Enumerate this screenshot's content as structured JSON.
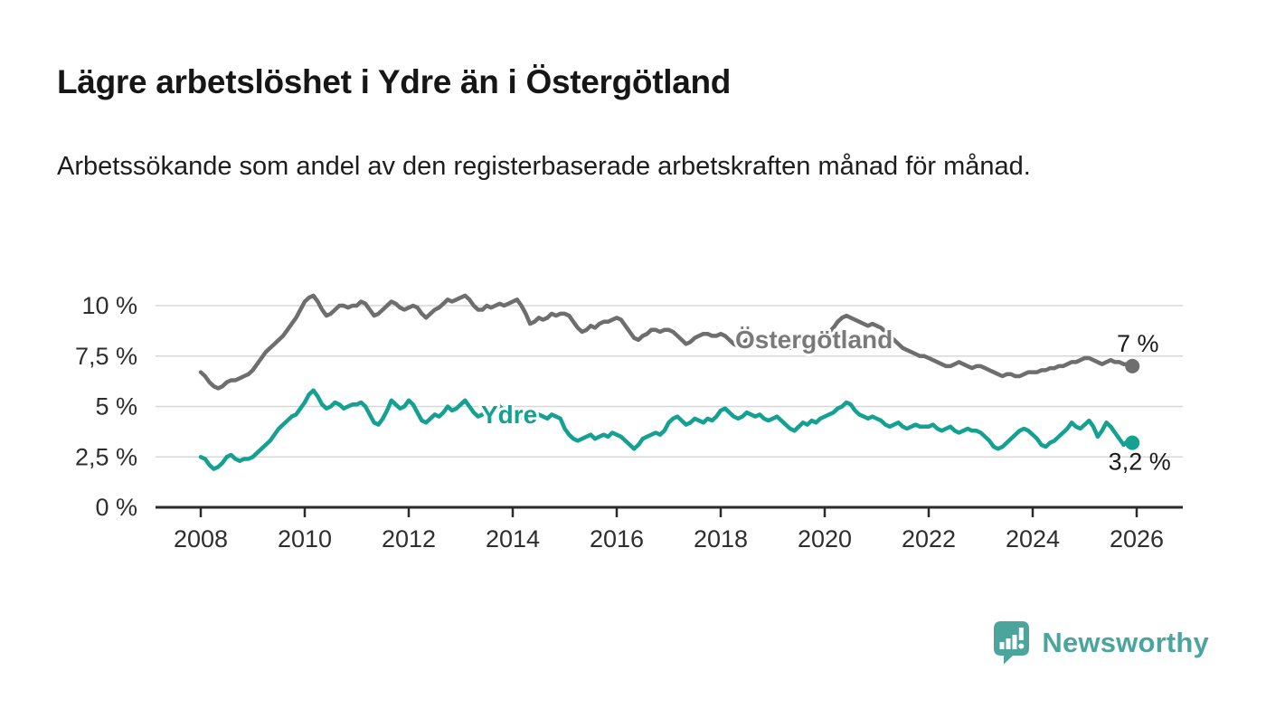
{
  "header": {
    "title": "Lägre arbetslöshet i Ydre än i Östergötland",
    "subtitle": "Arbetssökande som andel av den registerbaserade arbetskraften månad för månad."
  },
  "footer": {
    "brand": "Newsworthy"
  },
  "colors": {
    "accent_teal": "#14a191",
    "series_gray": "#6e6e6e",
    "label_gray": "#7a7a7a",
    "logo_teal": "#4ba59d",
    "grid": "#d8d8d8",
    "axis": "#2b2b2b",
    "text": "#2e2e2e"
  },
  "chart_data": {
    "type": "line",
    "title": "Lägre arbetslöshet i Ydre än i Östergötland",
    "subtitle": "Arbetssökande som andel av den registerbaserade arbetskraften månad för månad.",
    "frequency": "monthly",
    "x_start": "2008-01",
    "x_end": "2025-12",
    "xlim": [
      2007.1,
      2026.9
    ],
    "ylim": [
      0,
      11
    ],
    "grid": true,
    "legend": "inline-labels",
    "x_ticks": [
      {
        "year": 2008,
        "label": "2008"
      },
      {
        "year": 2010,
        "label": "2010"
      },
      {
        "year": 2012,
        "label": "2012"
      },
      {
        "year": 2014,
        "label": "2014"
      },
      {
        "year": 2016,
        "label": "2016"
      },
      {
        "year": 2018,
        "label": "2018"
      },
      {
        "year": 2020,
        "label": "2020"
      },
      {
        "year": 2022,
        "label": "2022"
      },
      {
        "year": 2024,
        "label": "2024"
      },
      {
        "year": 2026,
        "label": "2026"
      }
    ],
    "y_ticks": [
      {
        "value": 0,
        "label": "0 %"
      },
      {
        "value": 2.5,
        "label": "2,5 %"
      },
      {
        "value": 5,
        "label": "5 %"
      },
      {
        "value": 7.5,
        "label": "7,5 %"
      },
      {
        "value": 10,
        "label": "10 %"
      }
    ],
    "series": [
      {
        "name": "Östergötland",
        "color": "#6e6e6e",
        "label_color": "#7a7a7a",
        "end_label": "7 %",
        "values": [
          6.7,
          6.5,
          6.2,
          6.0,
          5.9,
          6.0,
          6.2,
          6.3,
          6.3,
          6.4,
          6.5,
          6.6,
          6.8,
          7.1,
          7.4,
          7.7,
          7.9,
          8.1,
          8.3,
          8.5,
          8.8,
          9.1,
          9.4,
          9.8,
          10.2,
          10.4,
          10.5,
          10.2,
          9.8,
          9.5,
          9.6,
          9.8,
          10.0,
          10.0,
          9.9,
          10.0,
          10.0,
          10.2,
          10.1,
          9.8,
          9.5,
          9.6,
          9.8,
          10.0,
          10.2,
          10.1,
          9.9,
          9.8,
          9.9,
          10.0,
          9.9,
          9.6,
          9.4,
          9.6,
          9.8,
          9.9,
          10.1,
          10.3,
          10.2,
          10.3,
          10.4,
          10.5,
          10.3,
          10.0,
          9.8,
          9.8,
          10.0,
          9.9,
          10.0,
          10.1,
          10.0,
          10.1,
          10.2,
          10.3,
          10.0,
          9.6,
          9.1,
          9.2,
          9.4,
          9.3,
          9.4,
          9.6,
          9.5,
          9.6,
          9.6,
          9.5,
          9.2,
          8.9,
          8.7,
          8.8,
          9.0,
          8.9,
          9.1,
          9.2,
          9.2,
          9.3,
          9.4,
          9.3,
          9.0,
          8.7,
          8.4,
          8.3,
          8.5,
          8.6,
          8.8,
          8.8,
          8.7,
          8.8,
          8.8,
          8.7,
          8.5,
          8.3,
          8.1,
          8.2,
          8.4,
          8.5,
          8.6,
          8.6,
          8.5,
          8.5,
          8.6,
          8.5,
          8.3,
          8.1,
          8.0,
          8.1,
          8.3,
          8.3,
          8.4,
          8.4,
          8.3,
          8.4,
          8.4,
          8.3,
          8.2,
          8.0,
          7.9,
          8.0,
          8.2,
          8.3,
          8.4,
          8.4,
          8.4,
          8.5,
          8.6,
          8.7,
          8.9,
          9.2,
          9.4,
          9.5,
          9.4,
          9.3,
          9.2,
          9.1,
          9.0,
          9.1,
          9.0,
          8.9,
          8.7,
          8.5,
          8.3,
          8.1,
          7.9,
          7.8,
          7.7,
          7.6,
          7.5,
          7.5,
          7.4,
          7.3,
          7.2,
          7.1,
          7.0,
          7.0,
          7.1,
          7.2,
          7.1,
          7.0,
          6.9,
          7.0,
          7.0,
          6.9,
          6.8,
          6.7,
          6.6,
          6.5,
          6.6,
          6.6,
          6.5,
          6.5,
          6.6,
          6.7,
          6.7,
          6.7,
          6.8,
          6.8,
          6.9,
          6.9,
          7.0,
          7.0,
          7.1,
          7.2,
          7.2,
          7.3,
          7.4,
          7.4,
          7.3,
          7.2,
          7.1,
          7.2,
          7.3,
          7.2,
          7.2,
          7.1,
          7.1,
          7.0
        ]
      },
      {
        "name": "Ydre",
        "color": "#14a191",
        "label_color": "#14a191",
        "end_label": "3,2 %",
        "values": [
          2.5,
          2.4,
          2.1,
          1.9,
          2.0,
          2.2,
          2.5,
          2.6,
          2.4,
          2.3,
          2.4,
          2.4,
          2.5,
          2.7,
          2.9,
          3.1,
          3.3,
          3.6,
          3.9,
          4.1,
          4.3,
          4.5,
          4.6,
          4.9,
          5.2,
          5.6,
          5.8,
          5.5,
          5.1,
          4.9,
          5.0,
          5.2,
          5.1,
          4.9,
          5.0,
          5.1,
          5.1,
          5.2,
          5.0,
          4.6,
          4.2,
          4.1,
          4.4,
          4.8,
          5.3,
          5.1,
          4.9,
          5.0,
          5.3,
          5.1,
          4.7,
          4.3,
          4.2,
          4.4,
          4.6,
          4.5,
          4.7,
          5.0,
          4.8,
          4.9,
          5.1,
          5.3,
          5.0,
          4.7,
          4.5,
          4.6,
          4.8,
          4.7,
          4.9,
          5.0,
          4.8,
          4.7,
          4.8,
          4.7,
          4.5,
          4.3,
          4.2,
          4.4,
          4.6,
          4.5,
          4.4,
          4.6,
          4.5,
          4.4,
          3.9,
          3.6,
          3.4,
          3.3,
          3.4,
          3.5,
          3.6,
          3.4,
          3.5,
          3.6,
          3.5,
          3.7,
          3.6,
          3.5,
          3.3,
          3.1,
          2.9,
          3.1,
          3.4,
          3.5,
          3.6,
          3.7,
          3.6,
          3.8,
          4.2,
          4.4,
          4.5,
          4.3,
          4.1,
          4.2,
          4.4,
          4.3,
          4.2,
          4.4,
          4.3,
          4.5,
          4.8,
          4.9,
          4.7,
          4.5,
          4.4,
          4.5,
          4.7,
          4.6,
          4.5,
          4.6,
          4.4,
          4.3,
          4.4,
          4.5,
          4.3,
          4.1,
          3.9,
          3.8,
          4.0,
          4.2,
          4.1,
          4.3,
          4.2,
          4.4,
          4.5,
          4.6,
          4.7,
          4.9,
          5.0,
          5.2,
          5.1,
          4.8,
          4.6,
          4.5,
          4.4,
          4.5,
          4.4,
          4.3,
          4.1,
          4.0,
          4.1,
          4.2,
          4.0,
          3.9,
          4.0,
          4.1,
          4.0,
          4.0,
          4.0,
          4.1,
          3.9,
          3.8,
          3.9,
          4.0,
          3.8,
          3.7,
          3.8,
          3.9,
          3.8,
          3.8,
          3.7,
          3.5,
          3.3,
          3.0,
          2.9,
          3.0,
          3.2,
          3.4,
          3.6,
          3.8,
          3.9,
          3.8,
          3.6,
          3.4,
          3.1,
          3.0,
          3.2,
          3.3,
          3.5,
          3.7,
          3.9,
          4.2,
          4.0,
          3.9,
          4.1,
          4.3,
          4.0,
          3.5,
          3.8,
          4.2,
          4.0,
          3.7,
          3.4,
          3.1,
          3.3,
          3.2
        ]
      }
    ]
  }
}
